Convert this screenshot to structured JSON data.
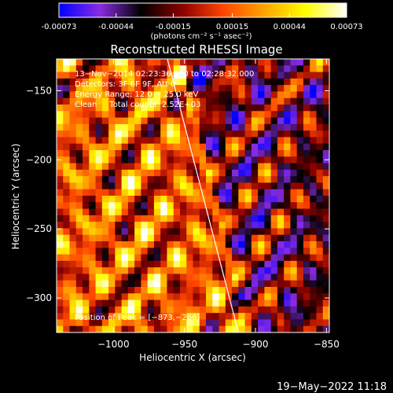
{
  "colorbar": {
    "tick_labels": [
      "-0.00073",
      "-0.00044",
      "-0.00015",
      "0.00015",
      "0.00044",
      "0.00073"
    ],
    "tick_values": [
      -0.00073,
      -0.00044,
      -0.00015,
      0.00015,
      0.00044,
      0.00073
    ],
    "range": [
      -0.00073,
      0.00073
    ],
    "units_label": "(photons cm⁻² s⁻¹ asec⁻²)"
  },
  "chart_data": {
    "type": "heatmap",
    "title": "Reconstructed RHESSI Image",
    "xlabel": "Heliocentric X (arcsec)",
    "ylabel": "Heliocentric Y (arcsec)",
    "xlim": [
      -1040,
      -848
    ],
    "ylim": [
      -325,
      -127
    ],
    "x_ticks": [
      -1000,
      -950,
      -900,
      -850
    ],
    "x_tick_labels": [
      "−1000",
      "−950",
      "−900",
      "−850"
    ],
    "y_ticks": [
      -150,
      -200,
      -250,
      -300
    ],
    "y_tick_labels": [
      "−150",
      "−200",
      "−250",
      "−300"
    ],
    "info_lines": [
      "13−Nov−2014 02:23:36.000 to 02:28:32.000",
      "Detectors: 3F 6F 9F, Att 0",
      "Energy Range: 12.0 − 25.0 keV",
      "Clean     Total counts: 2.52E+03"
    ],
    "peak_label": "Position of Peak = [−873,−266]",
    "peak_position": [
      -873,
      -266
    ],
    "limb_line": {
      "x": [
        -962,
        -912
      ],
      "y": [
        -127,
        -325
      ]
    },
    "colormap": [
      "#0000ff",
      "#8a2be2",
      "#000000",
      "#8b0000",
      "#ff4500",
      "#ffa500",
      "#ffff00",
      "#ffffff"
    ]
  },
  "footer": {
    "timestamp": "19−May−2022 11:18"
  }
}
